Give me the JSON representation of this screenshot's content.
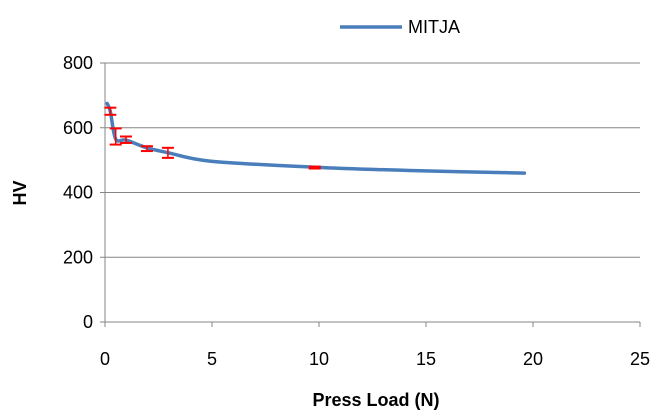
{
  "chart_data": {
    "type": "line",
    "title": "",
    "xlabel": "Press Load (N)",
    "ylabel": "HV",
    "xlim": [
      0,
      25
    ],
    "ylim": [
      0,
      800
    ],
    "xticks": [
      0,
      5,
      10,
      15,
      20,
      25
    ],
    "yticks": [
      0,
      200,
      400,
      600,
      800
    ],
    "grid": "horizontal",
    "legend_position": "top-center",
    "series": [
      {
        "name": "MITJA",
        "color": "#4a7ebb",
        "x": [
          0.1,
          0.25,
          0.5,
          0.98,
          1.96,
          2.94,
          4.9,
          9.8,
          14.7,
          19.6
        ],
        "y": [
          675,
          650,
          565,
          562,
          538,
          523,
          497,
          478,
          467,
          460
        ]
      }
    ],
    "error_bars": {
      "color": "#ff0000",
      "points": [
        {
          "x": 0.25,
          "low": 640,
          "high": 662
        },
        {
          "x": 0.5,
          "low": 548,
          "high": 598
        },
        {
          "x": 0.98,
          "low": 553,
          "high": 573
        },
        {
          "x": 1.96,
          "low": 528,
          "high": 543
        },
        {
          "x": 2.94,
          "low": 507,
          "high": 538
        },
        {
          "x": 9.8,
          "low": 474,
          "high": 480
        }
      ]
    }
  }
}
